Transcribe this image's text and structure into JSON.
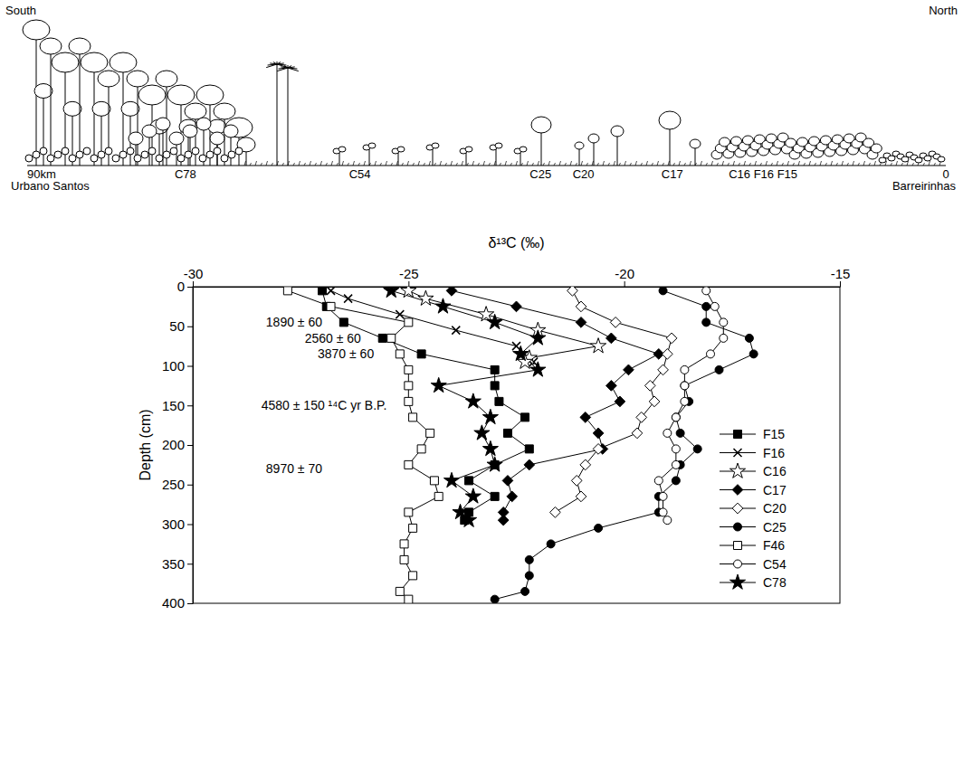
{
  "chart_data": {
    "type": "line",
    "x_label": "δ¹³C (‰)",
    "y_label": "Depth (cm)",
    "xlim": [
      -30,
      -15
    ],
    "xticks": [
      -30,
      -25,
      -20,
      -15
    ],
    "ylim": [
      0,
      400
    ],
    "yticks": [
      0,
      50,
      100,
      150,
      200,
      250,
      300,
      350,
      400
    ],
    "legend": "bottom-right",
    "series": [
      {
        "name": "F15",
        "color": "#000000",
        "marker": "filled-square",
        "y": [
          5,
          25,
          45,
          65,
          85,
          105,
          125,
          145,
          165,
          185,
          205,
          225,
          245,
          265,
          285,
          295
        ],
        "x": [
          -27.0,
          -26.9,
          -26.5,
          -25.6,
          -24.7,
          -23.0,
          -23.0,
          -22.9,
          -22.3,
          -22.7,
          -22.2,
          -23.0,
          -23.6,
          -23.0,
          -23.6,
          -23.7
        ]
      },
      {
        "name": "F16",
        "color": "#000000",
        "marker": "x",
        "y": [
          5,
          15,
          35,
          55,
          75,
          95
        ],
        "x": [
          -26.8,
          -26.4,
          -25.2,
          -23.9,
          -22.5,
          -22.1
        ]
      },
      {
        "name": "C16",
        "color": "#000000",
        "marker": "open-star",
        "y": [
          5,
          15,
          35,
          55,
          75,
          90,
          95
        ],
        "x": [
          -25.0,
          -24.6,
          -23.2,
          -22.0,
          -20.6,
          -22.2,
          -22.3
        ]
      },
      {
        "name": "C17",
        "color": "#000000",
        "marker": "filled-diamond",
        "y": [
          5,
          25,
          45,
          65,
          85,
          105,
          125,
          145,
          165,
          185,
          205,
          225,
          245,
          265,
          285,
          295
        ],
        "x": [
          -24.0,
          -22.5,
          -21.0,
          -20.3,
          -19.2,
          -19.9,
          -20.3,
          -20.1,
          -20.9,
          -20.6,
          -20.5,
          -22.2,
          -22.7,
          -22.6,
          -22.8,
          -22.8
        ]
      },
      {
        "name": "C20",
        "color": "#000000",
        "marker": "open-diamond",
        "y": [
          5,
          25,
          45,
          65,
          85,
          105,
          125,
          145,
          165,
          185,
          205,
          225,
          245,
          265,
          285
        ],
        "x": [
          -21.2,
          -21.0,
          -20.2,
          -18.9,
          -19.0,
          -19.1,
          -19.4,
          -19.3,
          -19.6,
          -19.7,
          -20.6,
          -20.9,
          -21.1,
          -21.0,
          -21.6
        ]
      },
      {
        "name": "C25",
        "color": "#000000",
        "marker": "filled-circle",
        "y": [
          5,
          25,
          45,
          65,
          85,
          105,
          125,
          145,
          165,
          185,
          205,
          225,
          245,
          265,
          285,
          305,
          325,
          345,
          365,
          385,
          395
        ],
        "x": [
          -19.1,
          -18.1,
          -18.1,
          -17.1,
          -17.0,
          -17.8,
          -18.6,
          -18.5,
          -18.8,
          -18.7,
          -18.3,
          -18.7,
          -18.8,
          -19.2,
          -19.2,
          -20.6,
          -21.7,
          -22.2,
          -22.2,
          -22.3,
          -23.0
        ]
      },
      {
        "name": "F46",
        "color": "#000000",
        "marker": "open-square",
        "y": [
          5,
          25,
          45,
          65,
          85,
          105,
          125,
          145,
          165,
          185,
          205,
          225,
          245,
          265,
          285,
          305,
          325,
          345,
          365,
          385,
          395
        ],
        "x": [
          -27.8,
          -26.8,
          -25.0,
          -25.4,
          -25.2,
          -25.0,
          -25.0,
          -25.0,
          -24.9,
          -24.5,
          -24.7,
          -25.0,
          -24.4,
          -24.3,
          -25.0,
          -24.9,
          -25.1,
          -25.1,
          -24.9,
          -25.2,
          -25.0
        ]
      },
      {
        "name": "C54",
        "color": "#000000",
        "marker": "open-circle",
        "y": [
          5,
          25,
          45,
          65,
          85,
          105,
          125,
          145,
          165,
          185,
          205,
          225,
          245,
          265,
          285,
          295
        ],
        "x": [
          -18.1,
          -17.9,
          -17.7,
          -17.7,
          -18.0,
          -18.6,
          -18.6,
          -18.6,
          -18.8,
          -19.0,
          -18.8,
          -18.8,
          -19.2,
          -19.1,
          -19.1,
          -19.0
        ]
      },
      {
        "name": "C78",
        "color": "#000000",
        "marker": "filled-star",
        "y": [
          5,
          25,
          45,
          65,
          85,
          105,
          125,
          145,
          165,
          185,
          205,
          225,
          245,
          265,
          285,
          295
        ],
        "x": [
          -25.4,
          -24.2,
          -23.0,
          -22.0,
          -22.4,
          -22.0,
          -24.3,
          -23.5,
          -23.1,
          -23.3,
          -23.1,
          -23.0,
          -24.0,
          -23.5,
          -23.8,
          -23.6
        ]
      }
    ],
    "annotations": [
      {
        "text": "1890 ± 60",
        "x": -27.0,
        "y": 45
      },
      {
        "text": "2560 ± 60",
        "x": -26.1,
        "y": 65
      },
      {
        "text": "3870 ± 60",
        "x": -25.8,
        "y": 85
      },
      {
        "text": "4580 ± 150 ¹⁴C yr B.P.",
        "x": -25.5,
        "y": 150
      },
      {
        "text": "8970 ± 70",
        "x": -27.0,
        "y": 230
      }
    ]
  },
  "transect": {
    "left_label": "South",
    "right_label": "North",
    "ends": [
      {
        "km": 90,
        "label": "90km",
        "place": "Urbano Santos"
      },
      {
        "km": 0,
        "label": "0",
        "place": "Barreirinhas"
      }
    ],
    "sites": [
      {
        "label": "C78",
        "km": 74.5
      },
      {
        "label": "C54",
        "km": 57.4
      },
      {
        "label": "C25",
        "km": 39.7
      },
      {
        "label": "C20",
        "km": 35.5
      },
      {
        "label": "C17",
        "km": 26.8
      },
      {
        "label": "C16 F16 F15",
        "km": 17.9
      }
    ]
  }
}
